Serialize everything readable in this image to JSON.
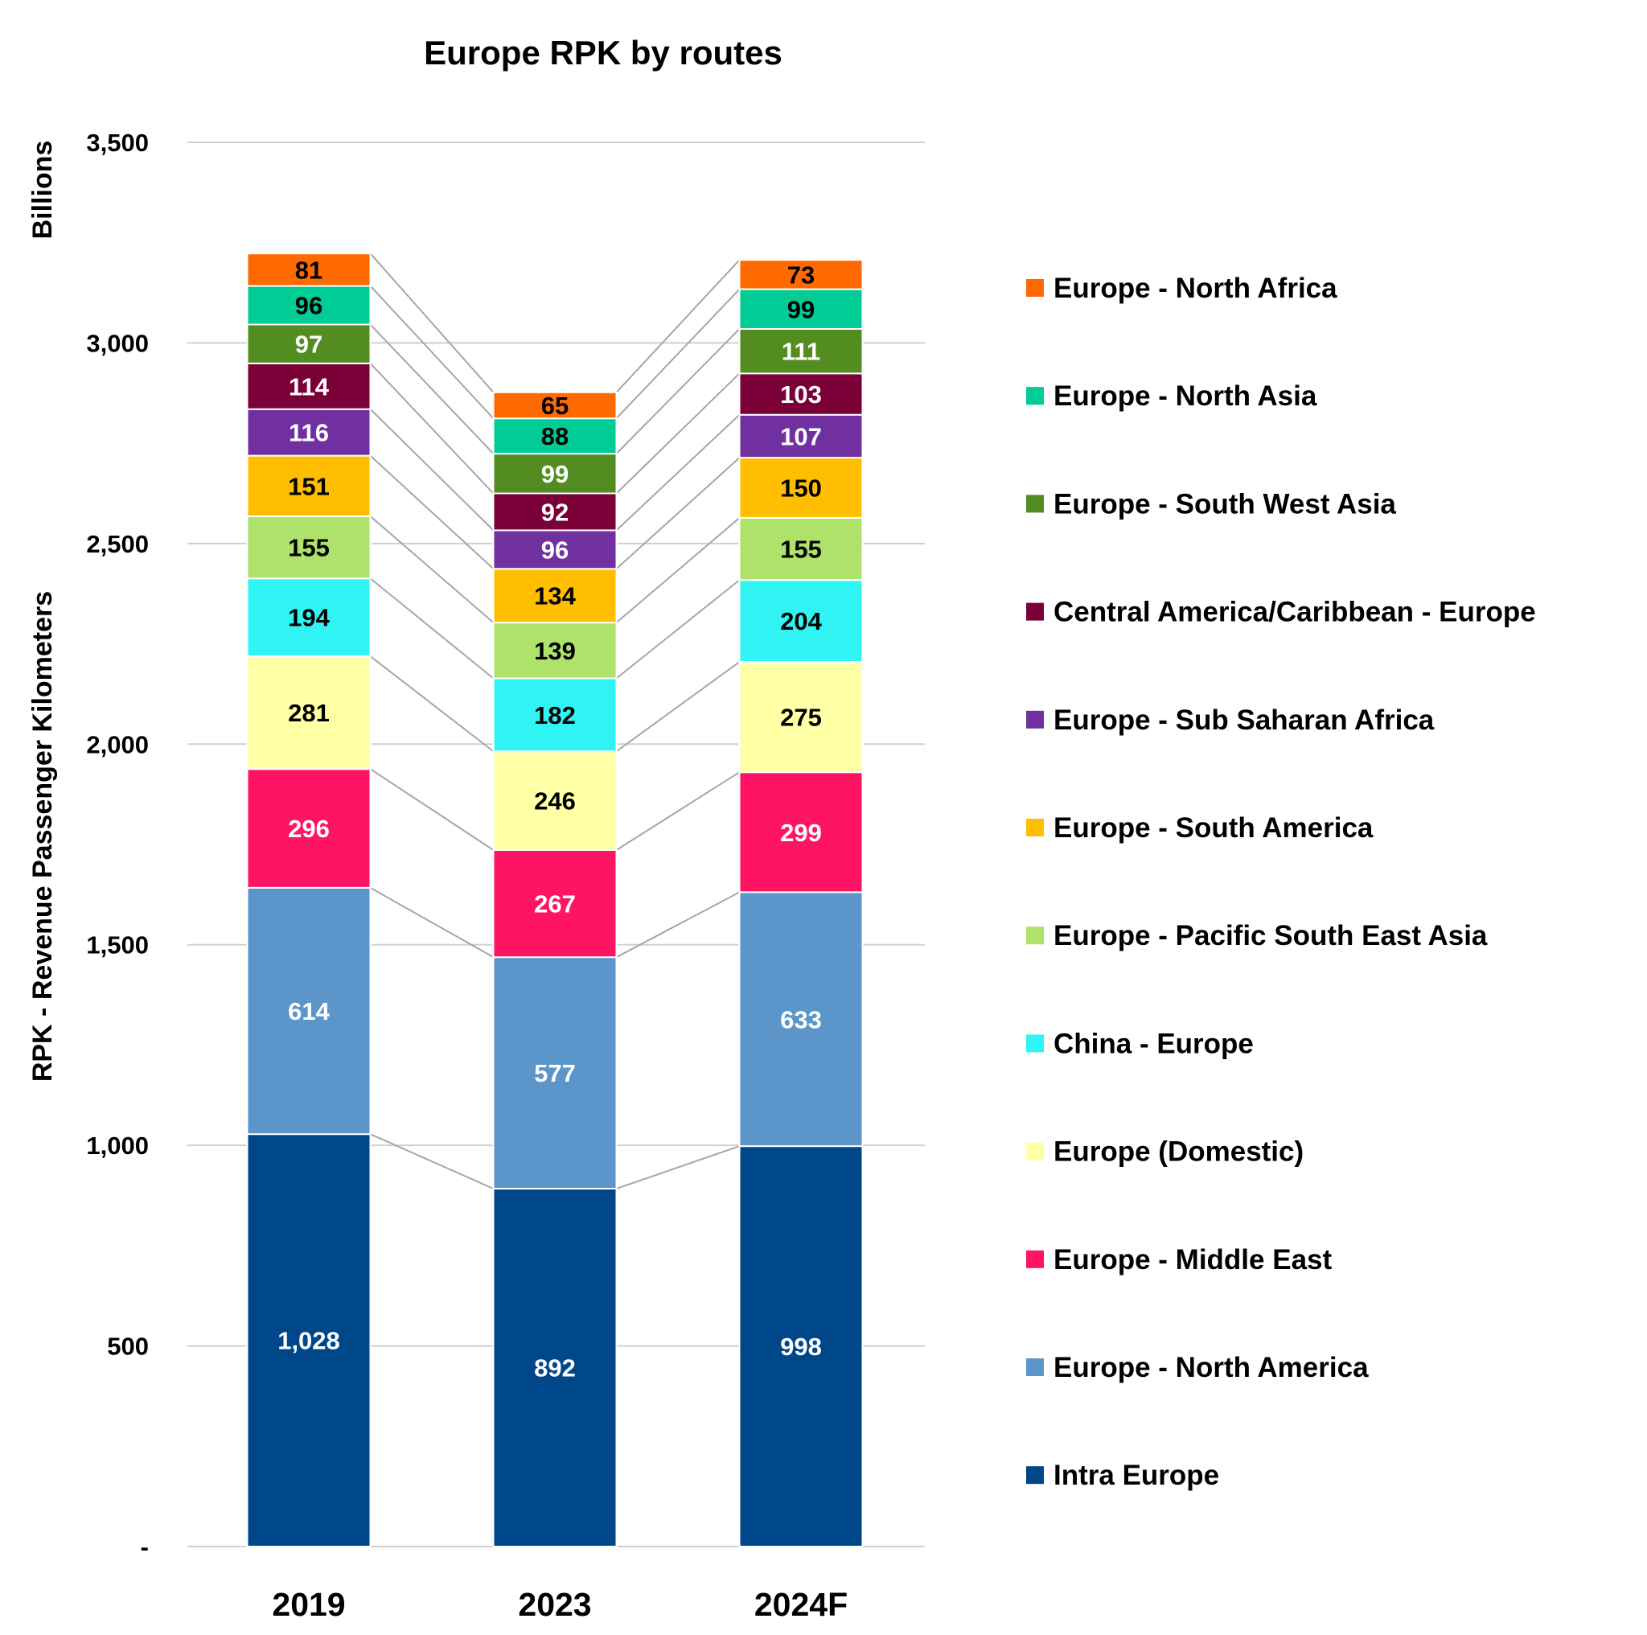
{
  "chart_data": {
    "type": "bar",
    "stacked": true,
    "title": "Europe RPK by routes",
    "ylabel": "RPK - Revenue Passenger Kilometers",
    "yunit_label": "Billions",
    "ylim": [
      0,
      3500
    ],
    "yticks": [
      0,
      500,
      1000,
      1500,
      2000,
      2500,
      3000,
      3500
    ],
    "ytick_labels": [
      "-",
      "500",
      "1,000",
      "1,500",
      "2,000",
      "2,500",
      "3,000",
      "3,500"
    ],
    "grid": true,
    "legend_position": "right",
    "series_connector_lines": true,
    "categories": [
      "2019",
      "2023",
      "2024F"
    ],
    "series": [
      {
        "name": "Intra Europe",
        "color": "#00478a",
        "label_color": "#ffffff",
        "values": [
          1028,
          892,
          998
        ],
        "labels": [
          "1,028",
          "892",
          "998"
        ]
      },
      {
        "name": "Europe - North America",
        "color": "#5b95c9",
        "label_color": "#ffffff",
        "values": [
          614,
          577,
          633
        ],
        "labels": [
          "614",
          "577",
          "633"
        ]
      },
      {
        "name": "Europe - Middle East",
        "color": "#ff1464",
        "label_color": "#ffffff",
        "values": [
          296,
          267,
          299
        ],
        "labels": [
          "296",
          "267",
          "299"
        ]
      },
      {
        "name": "Europe (Domestic)",
        "color": "#ffffa6",
        "label_color": "#000000",
        "values": [
          281,
          246,
          275
        ],
        "labels": [
          "281",
          "246",
          "275"
        ]
      },
      {
        "name": "China - Europe",
        "color": "#30f4f4",
        "label_color": "#000000",
        "values": [
          194,
          182,
          204
        ],
        "labels": [
          "194",
          "182",
          "204"
        ]
      },
      {
        "name": "Europe - Pacific South East Asia",
        "color": "#aee26a",
        "label_color": "#000000",
        "values": [
          155,
          139,
          155
        ],
        "labels": [
          "155",
          "139",
          "155"
        ]
      },
      {
        "name": "Europe - South America",
        "color": "#ffbf00",
        "label_color": "#000000",
        "values": [
          151,
          134,
          150
        ],
        "labels": [
          "151",
          "134",
          "150"
        ]
      },
      {
        "name": "Europe - Sub Saharan Africa",
        "color": "#7030a0",
        "label_color": "#ffffff",
        "values": [
          116,
          96,
          107
        ],
        "labels": [
          "116",
          "96",
          "107"
        ]
      },
      {
        "name": "Central America/Caribbean - Europe",
        "color": "#7b0038",
        "label_color": "#ffffff",
        "values": [
          114,
          92,
          103
        ],
        "labels": [
          "114",
          "92",
          "103"
        ]
      },
      {
        "name": "Europe - South West Asia",
        "color": "#538d22",
        "label_color": "#ffffff",
        "values": [
          97,
          99,
          111
        ],
        "labels": [
          "97",
          "99",
          "111"
        ]
      },
      {
        "name": "Europe - North Asia",
        "color": "#00cc96",
        "label_color": "#000000",
        "values": [
          96,
          88,
          99
        ],
        "labels": [
          "96",
          "88",
          "99"
        ]
      },
      {
        "name": "Europe - North Africa",
        "color": "#ff6a00",
        "label_color": "#000000",
        "values": [
          81,
          65,
          73
        ],
        "labels": [
          "81",
          "65",
          "73"
        ]
      }
    ]
  }
}
